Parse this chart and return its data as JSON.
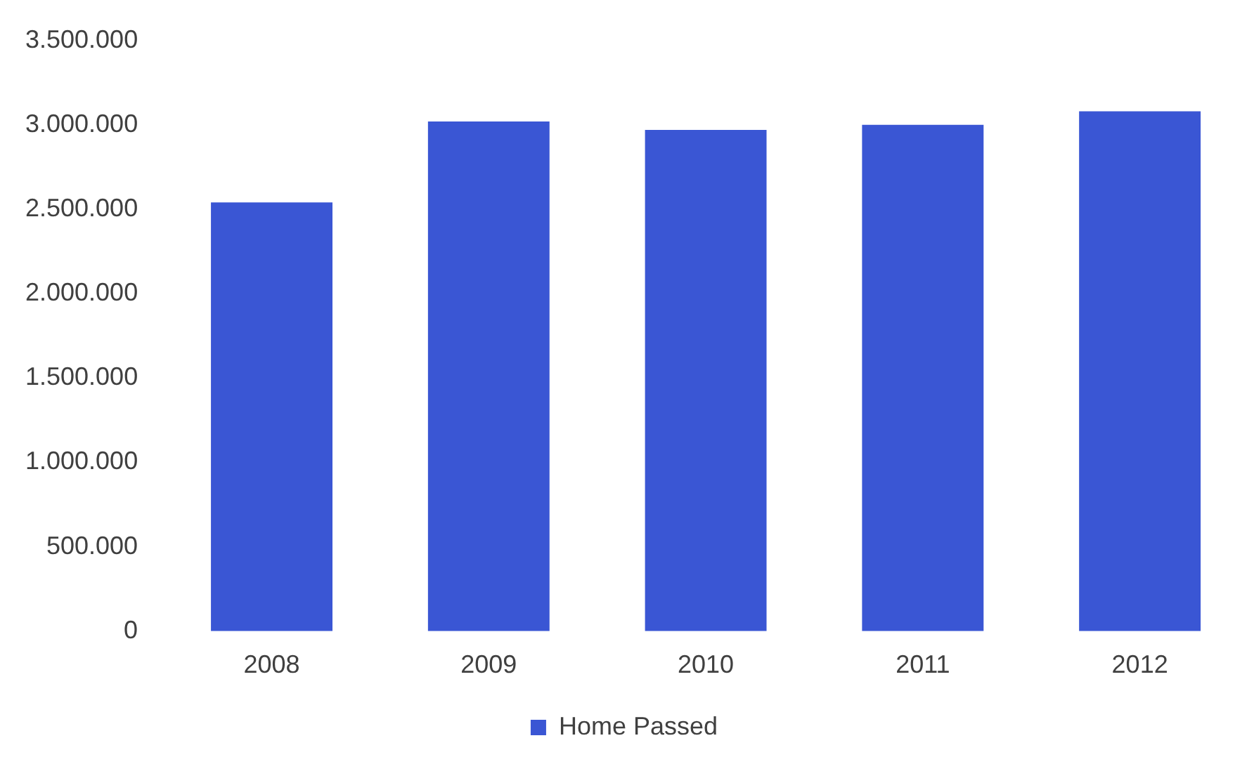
{
  "chart_data": {
    "type": "bar",
    "categories": [
      "2008",
      "2009",
      "2010",
      "2011",
      "2012"
    ],
    "series": [
      {
        "name": "Home Passed",
        "color": "#3a56d4",
        "values": [
          2540000,
          3020000,
          2970000,
          3000000,
          3080000
        ]
      }
    ],
    "ylim": [
      0,
      3500000
    ],
    "yticks": [
      {
        "value": 0,
        "label": "0"
      },
      {
        "value": 500000,
        "label": "500.000"
      },
      {
        "value": 1000000,
        "label": "1.000.000"
      },
      {
        "value": 1500000,
        "label": "1.500.000"
      },
      {
        "value": 2000000,
        "label": "2.000.000"
      },
      {
        "value": 2500000,
        "label": "2.500.000"
      },
      {
        "value": 3000000,
        "label": "3.000.000"
      },
      {
        "value": 3500000,
        "label": "3.500.000"
      }
    ],
    "grid": false,
    "legend": "bottom"
  }
}
